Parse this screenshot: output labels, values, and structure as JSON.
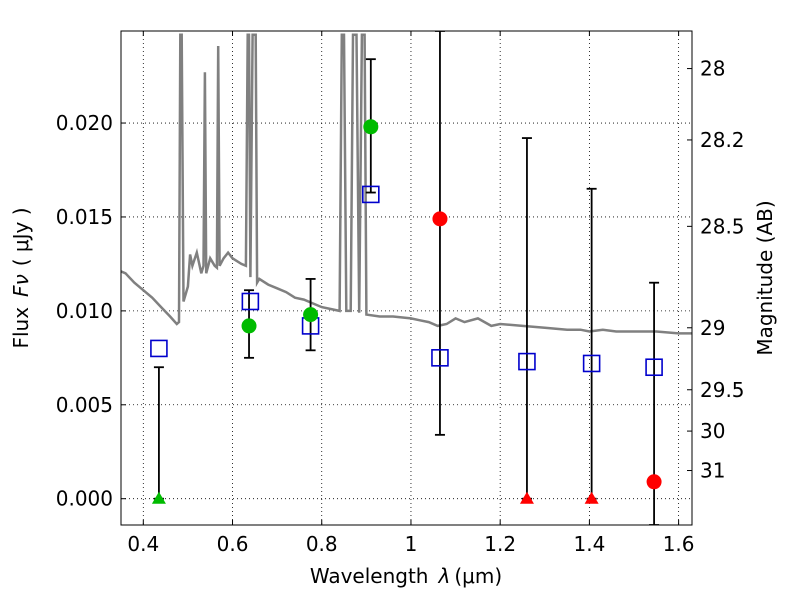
{
  "chart_data": {
    "type": "scatter",
    "xlabel": "Wavelength",
    "xlabel_symbol": "λ",
    "xlabel_unit": "(μm)",
    "ylabel": "Flux",
    "ylabel_symbol": "Fν",
    "ylabel_unit": "( μJy )",
    "y2label": "Magnitude (AB)",
    "xlim": [
      0.35,
      1.63
    ],
    "ylim": [
      -0.0014,
      0.0249
    ],
    "grid": true,
    "xticks": [
      0.4,
      0.6,
      0.8,
      1.0,
      1.2,
      1.4,
      1.6
    ],
    "xtick_labels": [
      "0.4",
      "0.6",
      "0.8",
      "1",
      "1.2",
      "1.4",
      "1.6"
    ],
    "yticks": [
      0.0,
      0.005,
      0.01,
      0.015,
      0.02
    ],
    "ytick_labels": [
      "0.000",
      "0.005",
      "0.010",
      "0.015",
      "0.020"
    ],
    "y2ticks": [
      {
        "label": "28",
        "flux": 0.0229
      },
      {
        "label": "28.2",
        "flux": 0.0191
      },
      {
        "label": "28.5",
        "flux": 0.0145
      },
      {
        "label": "29",
        "flux": 0.0091
      },
      {
        "label": "29.5",
        "flux": 0.0058
      },
      {
        "label": "30",
        "flux": 0.0036
      },
      {
        "label": "31",
        "flux": 0.0015
      }
    ],
    "series": [
      {
        "kind": "model_sed",
        "color": "#808080",
        "points": [
          [
            0.35,
            0.0121
          ],
          [
            0.36,
            0.012
          ],
          [
            0.38,
            0.0115
          ],
          [
            0.4,
            0.0111
          ],
          [
            0.42,
            0.0107
          ],
          [
            0.44,
            0.0102
          ],
          [
            0.46,
            0.0097
          ],
          [
            0.475,
            0.0093
          ],
          [
            0.48,
            0.0094
          ],
          [
            0.483,
            0.0247
          ],
          [
            0.486,
            0.0247
          ],
          [
            0.49,
            0.0105
          ],
          [
            0.5,
            0.0113
          ],
          [
            0.505,
            0.013
          ],
          [
            0.51,
            0.0124
          ],
          [
            0.52,
            0.0131
          ],
          [
            0.53,
            0.012
          ],
          [
            0.535,
            0.0124
          ],
          [
            0.538,
            0.0227
          ],
          [
            0.541,
            0.012
          ],
          [
            0.55,
            0.0128
          ],
          [
            0.56,
            0.0124
          ],
          [
            0.565,
            0.0123
          ],
          [
            0.568,
            0.0241
          ],
          [
            0.571,
            0.0124
          ],
          [
            0.58,
            0.0128
          ],
          [
            0.59,
            0.0131
          ],
          [
            0.6,
            0.0128
          ],
          [
            0.62,
            0.0125
          ],
          [
            0.63,
            0.0124
          ],
          [
            0.634,
            0.0247
          ],
          [
            0.637,
            0.0247
          ],
          [
            0.64,
            0.0118
          ],
          [
            0.645,
            0.0247
          ],
          [
            0.648,
            0.0247
          ],
          [
            0.652,
            0.0247
          ],
          [
            0.655,
            0.0115
          ],
          [
            0.66,
            0.0117
          ],
          [
            0.68,
            0.0114
          ],
          [
            0.7,
            0.0112
          ],
          [
            0.72,
            0.011
          ],
          [
            0.74,
            0.0107
          ],
          [
            0.76,
            0.0106
          ],
          [
            0.78,
            0.0104
          ],
          [
            0.8,
            0.0102
          ],
          [
            0.82,
            0.0101
          ],
          [
            0.84,
            0.01
          ],
          [
            0.845,
            0.0247
          ],
          [
            0.85,
            0.0247
          ],
          [
            0.855,
            0.01
          ],
          [
            0.865,
            0.01
          ],
          [
            0.87,
            0.0247
          ],
          [
            0.878,
            0.0247
          ],
          [
            0.884,
            0.0099
          ],
          [
            0.89,
            0.0247
          ],
          [
            0.896,
            0.0247
          ],
          [
            0.9,
            0.0098
          ],
          [
            0.93,
            0.0097
          ],
          [
            0.96,
            0.0097
          ],
          [
            1.0,
            0.0096
          ],
          [
            1.02,
            0.0095
          ],
          [
            1.04,
            0.0094
          ],
          [
            1.06,
            0.0092
          ],
          [
            1.08,
            0.0093
          ],
          [
            1.1,
            0.0096
          ],
          [
            1.12,
            0.0094
          ],
          [
            1.15,
            0.0096
          ],
          [
            1.18,
            0.0092
          ],
          [
            1.2,
            0.0093
          ],
          [
            1.25,
            0.0092
          ],
          [
            1.3,
            0.0091
          ],
          [
            1.35,
            0.009
          ],
          [
            1.38,
            0.009
          ],
          [
            1.4,
            0.0089
          ],
          [
            1.43,
            0.009
          ],
          [
            1.46,
            0.0089
          ],
          [
            1.5,
            0.0089
          ],
          [
            1.55,
            0.0089
          ],
          [
            1.6,
            0.0088
          ],
          [
            1.63,
            0.0088
          ]
        ]
      },
      {
        "kind": "model_photometry",
        "marker": "open-square",
        "color": "#0000cc",
        "points": [
          [
            0.435,
            0.008
          ],
          [
            0.64,
            0.0105
          ],
          [
            0.775,
            0.0092
          ],
          [
            0.91,
            0.0162
          ],
          [
            1.065,
            0.0075
          ],
          [
            1.26,
            0.0073
          ],
          [
            1.405,
            0.0072
          ],
          [
            1.545,
            0.007
          ]
        ]
      },
      {
        "kind": "observed_detection",
        "marker": "filled-circle",
        "color": "#00bb00",
        "points": [
          {
            "x": 0.637,
            "y": 0.0092,
            "ylo": 0.0075,
            "yhi": 0.0111
          },
          {
            "x": 0.775,
            "y": 0.0098,
            "ylo": 0.0079,
            "yhi": 0.0117
          },
          {
            "x": 0.91,
            "y": 0.0198,
            "ylo": 0.0163,
            "yhi": 0.0234
          }
        ]
      },
      {
        "kind": "observed_nondetection",
        "marker": "filled-circle",
        "color": "#ff0000",
        "points": [
          {
            "x": 1.065,
            "y": 0.0149,
            "ylo": 0.0034,
            "yhi": 0.0249
          },
          {
            "x": 1.545,
            "y": 0.0009,
            "ylo": -0.0014,
            "yhi": 0.0115
          }
        ]
      },
      {
        "kind": "upper_limit_green",
        "marker": "triangle-up",
        "color": "#00bb00",
        "points": [
          {
            "x": 0.435,
            "y": 0.0,
            "ylo": 0.0,
            "yhi": 0.007
          }
        ]
      },
      {
        "kind": "upper_limit_red",
        "marker": "triangle-up",
        "color": "#ff0000",
        "points": [
          {
            "x": 1.26,
            "y": 0.0,
            "ylo": 0.0,
            "yhi": 0.0192
          },
          {
            "x": 1.405,
            "y": 0.0,
            "ylo": 0.0,
            "yhi": 0.0165
          }
        ]
      }
    ]
  }
}
